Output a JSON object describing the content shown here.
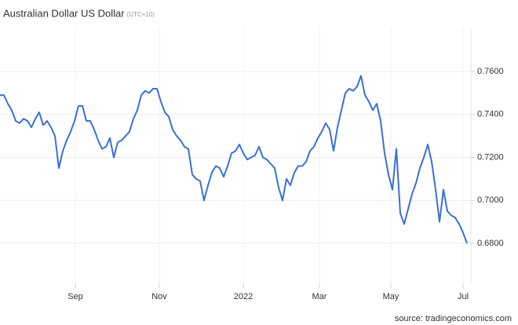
{
  "chart_data": {
    "type": "line",
    "title": "Australian Dollar US Dollar",
    "subtitle": "(UTC+10)",
    "source": "source: tradingeconomics.com",
    "xlim": [
      0,
      120
    ],
    "xticks": [
      {
        "value": 19.2,
        "label": "Sep"
      },
      {
        "value": 40.6,
        "label": "Nov"
      },
      {
        "value": 62,
        "label": "2022"
      },
      {
        "value": 81.4,
        "label": "Mar"
      },
      {
        "value": 99.6,
        "label": "May"
      },
      {
        "value": 118,
        "label": "Jul"
      }
    ],
    "ylim": [
      0.661,
      0.7805
    ],
    "yticks": [
      {
        "value": 0.68,
        "label": "0.6800"
      },
      {
        "value": 0.7,
        "label": "0.7000"
      },
      {
        "value": 0.72,
        "label": "0.7200"
      },
      {
        "value": 0.74,
        "label": "0.7400"
      },
      {
        "value": 0.76,
        "label": "0.7600"
      }
    ],
    "grid": true,
    "series": [
      {
        "name": "Australian Dollar US Dollar",
        "color": "#3a6fd8",
        "values": [
          0.749,
          0.749,
          0.745,
          0.742,
          0.737,
          0.736,
          0.738,
          0.737,
          0.734,
          0.738,
          0.741,
          0.735,
          0.737,
          0.734,
          0.73,
          0.715,
          0.723,
          0.728,
          0.732,
          0.737,
          0.744,
          0.744,
          0.737,
          0.737,
          0.733,
          0.728,
          0.724,
          0.725,
          0.729,
          0.72,
          0.727,
          0.728,
          0.73,
          0.732,
          0.738,
          0.742,
          0.749,
          0.751,
          0.75,
          0.752,
          0.752,
          0.746,
          0.741,
          0.739,
          0.733,
          0.73,
          0.728,
          0.725,
          0.724,
          0.712,
          0.71,
          0.709,
          0.7,
          0.707,
          0.713,
          0.716,
          0.715,
          0.711,
          0.716,
          0.722,
          0.723,
          0.726,
          0.722,
          0.719,
          0.72,
          0.721,
          0.725,
          0.72,
          0.719,
          0.717,
          0.715,
          0.706,
          0.7,
          0.71,
          0.707,
          0.713,
          0.716,
          0.716,
          0.718,
          0.723,
          0.725,
          0.729,
          0.732,
          0.736,
          0.733,
          0.723,
          0.734,
          0.742,
          0.75,
          0.752,
          0.751,
          0.753,
          0.758,
          0.749,
          0.746,
          0.742,
          0.745,
          0.737,
          0.722,
          0.712,
          0.705,
          0.724,
          0.694,
          0.689,
          0.696,
          0.703,
          0.708,
          0.715,
          0.72,
          0.726,
          0.718,
          0.705,
          0.69,
          0.705,
          0.695,
          0.693,
          0.692,
          0.689,
          0.685,
          0.68
        ]
      }
    ]
  }
}
